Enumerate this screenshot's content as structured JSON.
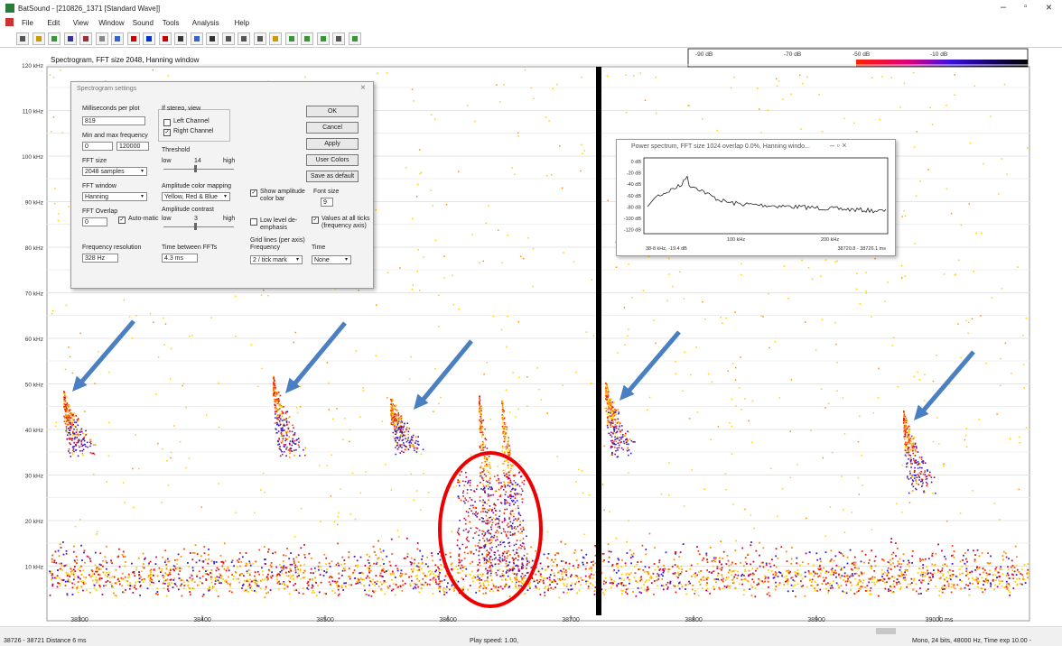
{
  "window": {
    "title": "BatSound - [210826_1371 [Standard Wave]]",
    "menu": [
      "File",
      "Edit",
      "View",
      "Window",
      "Sound",
      "Tools",
      "Analysis",
      "Help"
    ]
  },
  "spectrogram": {
    "title": "Spectrogram, FFT size 2048, Hanning window",
    "color_bar": [
      "-90 dB",
      "-70 dB",
      "-50 dB",
      "-10 dB"
    ],
    "y_labels": [
      "120 kHz",
      "110 kHz",
      "100 kHz",
      "90 kHz",
      "80 kHz",
      "70 kHz",
      "60 kHz",
      "50 kHz",
      "40 kHz",
      "30 kHz",
      "20 kHz",
      "10 kHz"
    ],
    "x_labels": [
      "38300",
      "38400",
      "38500",
      "38600",
      "38700",
      "38800",
      "38900",
      "39000 ms"
    ]
  },
  "settings_dialog": {
    "title": "Spectrogram settings",
    "ms_per_plot_label": "Milliseconds per plot",
    "ms_per_plot": "819",
    "freq_label": "Min and max frequency",
    "min_freq": "0",
    "max_freq": "120000",
    "fft_size_label": "FFT size",
    "fft_size": "2048 samples",
    "fft_window_label": "FFT window",
    "fft_window": "Hanning",
    "fft_overlap_label": "FFT Overlap",
    "fft_overlap": "0",
    "automatic": "Auto-matic",
    "freq_res_label": "Frequency resolution",
    "freq_res": "328 Hz",
    "stereo_label": "If stereo, view",
    "left_channel": "Left Channel",
    "right_channel": "Right Channel",
    "threshold_label": "Threshold",
    "threshold_low": "low",
    "threshold": "14",
    "threshold_high": "high",
    "color_mapping_label": "Amplitude color mapping",
    "color_mapping": "Yellow, Red & Blue",
    "contrast_label": "Amplitude contrast",
    "contrast_low": "low",
    "contrast": "3",
    "contrast_high": "high",
    "time_between_label": "Time between FFTs",
    "time_between": "4.3 ms",
    "buttons": [
      "OK",
      "Cancel",
      "Apply",
      "User Colors",
      "Save as default"
    ],
    "show_color_bar": "Show amplitude color bar",
    "font_size_label": "Font size",
    "font_size": "9",
    "low_level": "Low level de-emphasis",
    "values_all_ticks": "Values at all ticks (frequency axis)",
    "grid_label": "Grid lines (per axis)",
    "grid_freq_label": "Frequency",
    "grid_freq": "2 / tick mark",
    "grid_time_label": "Time",
    "grid_time": "None"
  },
  "power_spectrum": {
    "title": "Power spectrum, FFT size 1024 overlap 0.0%, Hanning windo...",
    "y_labels": [
      "0 dB",
      "-20 dB",
      "-40 dB",
      "-60 dB",
      "-80 dB",
      "-100 dB",
      "-120 dB"
    ],
    "x_labels": [
      "100 kHz",
      "200 kHz"
    ],
    "cursor": "38-8 kHz, -19.4 dB",
    "range": "38720.8 - 38726.1 ms"
  },
  "status_bar": [
    "38726 - 38721 Distance 6 ms",
    "Play speed: 1.00,",
    "Mono, 24 bits, 48000 Hz, Time exp 10.00 -"
  ]
}
